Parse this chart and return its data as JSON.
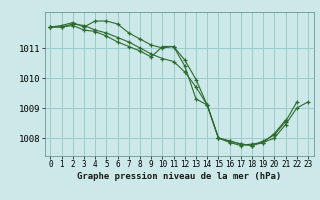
{
  "title": "Graphe pression niveau de la mer (hPa)",
  "bg_color": "#cce8e8",
  "grid_color": "#99cccc",
  "line_color": "#2d6a2d",
  "xlim": [
    -0.5,
    23.5
  ],
  "ylim": [
    1007.4,
    1012.2
  ],
  "yticks": [
    1008,
    1009,
    1010,
    1011
  ],
  "xticks": [
    0,
    1,
    2,
    3,
    4,
    5,
    6,
    7,
    8,
    9,
    10,
    11,
    12,
    13,
    14,
    15,
    16,
    17,
    18,
    19,
    20,
    21,
    22,
    23
  ],
  "series1": [
    1011.7,
    1011.7,
    1011.8,
    1011.75,
    1011.6,
    1011.5,
    1011.35,
    1011.2,
    1011.0,
    1010.8,
    1010.65,
    1010.55,
    1010.2,
    1009.7,
    1009.1,
    1008.0,
    1007.9,
    1007.8,
    1007.75,
    1007.9,
    1008.1,
    1008.55,
    1009.2,
    null
  ],
  "series2": [
    1011.7,
    1011.7,
    1011.75,
    1011.6,
    1011.55,
    1011.4,
    1011.2,
    1011.05,
    1010.9,
    1010.7,
    1011.05,
    1011.05,
    1010.6,
    1009.95,
    1009.1,
    1008.0,
    1007.9,
    1007.8,
    1007.75,
    1007.85,
    1008.0,
    1008.45,
    1009.0,
    1009.2
  ],
  "series3": [
    1011.7,
    1011.75,
    1011.85,
    1011.7,
    1011.9,
    1011.9,
    1011.8,
    1011.5,
    1011.3,
    1011.1,
    1011.0,
    1011.05,
    1010.4,
    1009.3,
    1009.1,
    1008.0,
    1007.85,
    1007.75,
    1007.8,
    1007.85,
    1008.15,
    1008.6,
    null,
    null
  ],
  "title_fontsize": 6.5,
  "tick_fontsize": 5.5,
  "ylabel_fontsize": 6.5
}
